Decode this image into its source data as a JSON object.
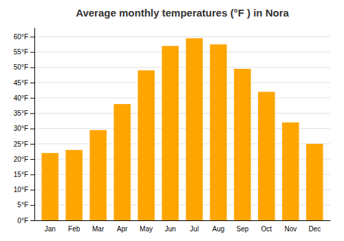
{
  "chart_data": {
    "type": "bar",
    "title": "Average monthly temperatures (°F ) in Nora",
    "categories": [
      "Jan",
      "Feb",
      "Mar",
      "Apr",
      "May",
      "Jun",
      "Jul",
      "Aug",
      "Sep",
      "Oct",
      "Nov",
      "Dec"
    ],
    "values": [
      22,
      23,
      29.5,
      38,
      49,
      57,
      59.5,
      57.5,
      49.5,
      42,
      32,
      25
    ],
    "color": "#FFA500",
    "ylim": [
      0,
      63
    ],
    "yticks": [
      {
        "value": 0,
        "label": "0°F"
      },
      {
        "value": 5,
        "label": "5°F"
      },
      {
        "value": 10,
        "label": "10°F"
      },
      {
        "value": 15,
        "label": "15°F"
      },
      {
        "value": 20,
        "label": "20°F"
      },
      {
        "value": 25,
        "label": "25°F"
      },
      {
        "value": 30,
        "label": "30°F"
      },
      {
        "value": 35,
        "label": "35°F"
      },
      {
        "value": 40,
        "label": "40°F"
      },
      {
        "value": 45,
        "label": "45°F"
      },
      {
        "value": 50,
        "label": "50°F"
      },
      {
        "value": 55,
        "label": "55°F"
      },
      {
        "value": 60,
        "label": "60°F"
      }
    ],
    "grid": true
  }
}
